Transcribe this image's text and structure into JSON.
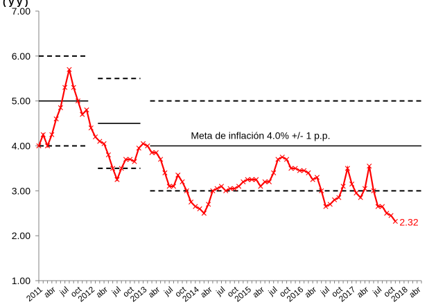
{
  "header": {
    "title_fragment": "(         y y ) "
  },
  "chart_data": {
    "type": "line",
    "title": "",
    "xlabel": "",
    "ylabel": "",
    "ylim": [
      1.0,
      7.0
    ],
    "yticks": [
      "1.00",
      "2.00",
      "3.00",
      "4.00",
      "5.00",
      "6.00",
      "7.00"
    ],
    "x_tick_labels": [
      "2011",
      "abr",
      "jul",
      "oct",
      "2012",
      "abr",
      "jul",
      "oct",
      "2013",
      "abr",
      "jul",
      "oct",
      "2014",
      "abr",
      "jul",
      "oct",
      "2015",
      "abr",
      "jul",
      "oct",
      "2016",
      "abr",
      "jul",
      "oct",
      "2017",
      "abr",
      "jul",
      "oct",
      "2018",
      "abr"
    ],
    "n_months": 88,
    "series": [
      {
        "color": "#ff0000",
        "marker": "x",
        "values": [
          4.0,
          4.25,
          4.0,
          4.25,
          4.6,
          4.85,
          5.3,
          5.7,
          5.3,
          5.0,
          4.7,
          4.8,
          4.4,
          4.2,
          4.1,
          4.05,
          3.8,
          3.5,
          3.25,
          3.5,
          3.7,
          3.7,
          3.65,
          3.95,
          4.05,
          4.0,
          3.85,
          3.85,
          3.7,
          3.4,
          3.1,
          3.1,
          3.35,
          3.2,
          3.0,
          2.75,
          2.65,
          2.6,
          2.5,
          2.7,
          3.0,
          3.05,
          3.1,
          3.0,
          3.05,
          3.05,
          3.1,
          3.2,
          3.25,
          3.25,
          3.25,
          3.1,
          3.2,
          3.2,
          3.4,
          3.7,
          3.75,
          3.7,
          3.5,
          3.5,
          3.45,
          3.45,
          3.4,
          3.25,
          3.3,
          3.0,
          2.65,
          2.7,
          2.8,
          2.85,
          3.1,
          3.5,
          3.15,
          2.95,
          2.85,
          3.05,
          3.55,
          3.0,
          2.65,
          2.65,
          2.5,
          2.45,
          2.32
        ],
        "last_value_label": "2.32"
      }
    ],
    "target_bands": [
      {
        "x_start_month": 0,
        "x_end_month": 12,
        "center": 5.0,
        "upper": 6.0,
        "lower": 4.0
      },
      {
        "x_start_month": 12,
        "x_end_month": 24,
        "center": 4.5,
        "upper": 5.5,
        "lower": 3.5
      },
      {
        "x_start_month": 24,
        "x_end_month": 88,
        "center": 4.0,
        "upper": 5.0,
        "lower": 3.0
      }
    ],
    "annotation": "Meta de inflación 4.0% +/- 1 p.p.",
    "grid": false,
    "legend": "none"
  }
}
